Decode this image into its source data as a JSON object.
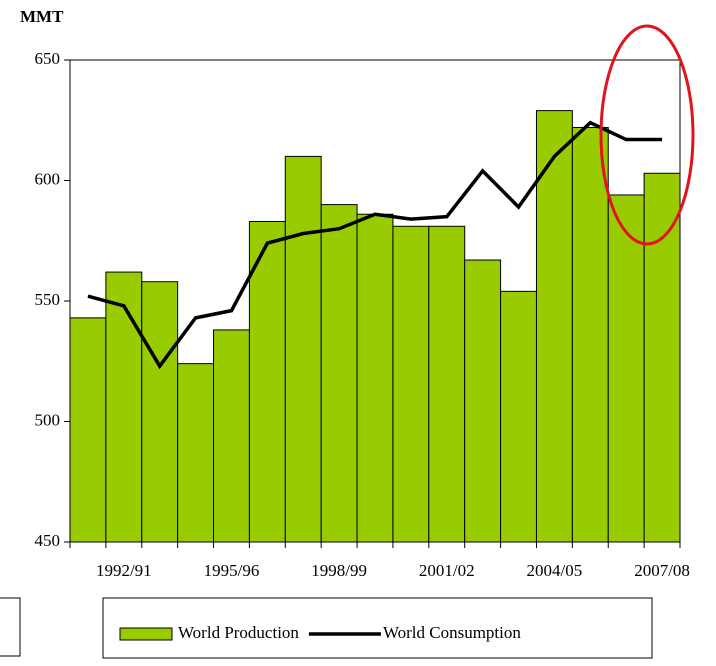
{
  "chart_data": {
    "type": "bar_line",
    "ylabel": "MMT",
    "categories": [
      null,
      "1992/91",
      null,
      null,
      "1995/96",
      null,
      null,
      "1998/99",
      null,
      null,
      "2001/02",
      null,
      null,
      "2004/05",
      null,
      null,
      "2007/08"
    ],
    "series": [
      {
        "name": "World Production",
        "type": "bar",
        "color": "#99cc00",
        "values": [
          543,
          562,
          558,
          524,
          538,
          583,
          610,
          590,
          586,
          581,
          581,
          567,
          554,
          629,
          622,
          594,
          603
        ]
      },
      {
        "name": "World Consumption",
        "type": "line",
        "color": "#000000",
        "values": [
          552,
          548,
          523,
          543,
          546,
          574,
          578,
          580,
          586,
          584,
          585,
          604,
          589,
          610,
          624,
          617,
          617
        ]
      }
    ],
    "ylim": [
      450,
      650
    ],
    "yticks": [
      450,
      500,
      550,
      600,
      650
    ]
  }
}
